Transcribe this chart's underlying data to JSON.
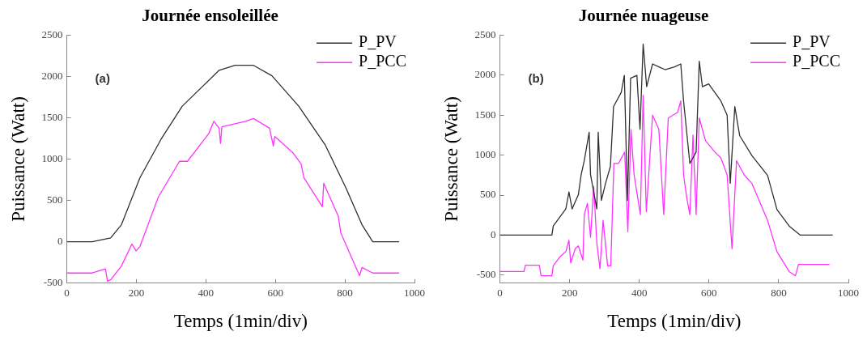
{
  "chart_data": [
    {
      "type": "line",
      "title": "Journée ensoleillée",
      "xlabel": "Temps (1min/div)",
      "ylabel": "Puissance (Watt)",
      "annotations": [
        "(a)"
      ],
      "legend": "top right",
      "grid": false,
      "marker": "none",
      "line_style": "solid",
      "xlim": [
        0,
        1000
      ],
      "xticks": [
        0,
        200,
        400,
        600,
        800,
        1000
      ],
      "ylim": [
        -500,
        2500
      ],
      "yticks": [
        -500,
        0,
        500,
        1000,
        1500,
        2000,
        2500
      ],
      "series": [
        {
          "name": "P_PV",
          "color": "#303030",
          "x": [
            0,
            73,
            126,
            157,
            210,
            271,
            332,
            438,
            484,
            537,
            590,
            667,
            743,
            804,
            849,
            880,
            956
          ],
          "values": [
            0,
            0,
            47,
            207,
            773,
            1240,
            1640,
            2073,
            2133,
            2133,
            2007,
            1640,
            1173,
            640,
            207,
            0,
            0
          ]
        },
        {
          "name": "P_PCC",
          "color": "#ff33ff",
          "x": [
            0,
            73,
            111,
            117,
            126,
            157,
            187,
            199,
            210,
            263,
            324,
            347,
            408,
            423,
            438,
            442,
            446,
            514,
            537,
            583,
            594,
            598,
            651,
            674,
            682,
            735,
            739,
            781,
            788,
            842,
            849,
            880,
            956
          ],
          "values": [
            -377,
            -377,
            -327,
            -477,
            -460,
            -293,
            -27,
            -110,
            -60,
            540,
            973,
            973,
            1307,
            1457,
            1373,
            1190,
            1390,
            1457,
            1490,
            1373,
            1157,
            1273,
            1073,
            940,
            773,
            423,
            707,
            307,
            107,
            -410,
            -310,
            -377,
            -377
          ]
        }
      ]
    },
    {
      "type": "line",
      "title": "Journée nuageuse",
      "xlabel": "Temps (1min/div)",
      "ylabel": "Puissance (Watt)",
      "annotations": [
        "(b)"
      ],
      "legend": "top right",
      "grid": false,
      "marker": "none",
      "line_style": "solid",
      "xlim": [
        0,
        1000
      ],
      "xticks": [
        0,
        200,
        400,
        600,
        800,
        1000
      ],
      "ylim": [
        -600,
        2500
      ],
      "yticks": [
        -500,
        0,
        500,
        1000,
        1500,
        2000,
        2500
      ],
      "series": [
        {
          "name": "P_PV",
          "color": "#303030",
          "x": [
            0,
            149,
            153,
            189,
            198,
            207,
            225,
            233,
            242,
            256,
            260,
            278,
            282,
            291,
            303,
            317,
            326,
            348,
            357,
            366,
            375,
            393,
            402,
            411,
            421,
            438,
            456,
            474,
            501,
            519,
            527,
            545,
            563,
            572,
            581,
            599,
            634,
            652,
            661,
            674,
            688,
            723,
            768,
            795,
            830,
            862,
            955
          ],
          "values": [
            0,
            0,
            114,
            327,
            540,
            327,
            504,
            753,
            930,
            1285,
            753,
            327,
            1285,
            433,
            646,
            859,
            1605,
            1783,
            1996,
            433,
            1960,
            1996,
            1321,
            2386,
            1854,
            2138,
            2102,
            2067,
            2102,
            2138,
            1676,
            895,
            1037,
            2173,
            1854,
            1889,
            1676,
            1499,
            647,
            1605,
            1243,
            994,
            746,
            320,
            114,
            0,
            0
          ]
        },
        {
          "name": "P_PCC",
          "color": "#ff33ff",
          "x": [
            0,
            69,
            73,
            113,
            118,
            149,
            153,
            171,
            189,
            198,
            203,
            216,
            225,
            238,
            242,
            251,
            260,
            269,
            278,
            287,
            296,
            309,
            318,
            327,
            340,
            358,
            367,
            376,
            385,
            403,
            411,
            420,
            438,
            456,
            470,
            483,
            510,
            519,
            527,
            536,
            545,
            554,
            563,
            572,
            590,
            617,
            634,
            652,
            666,
            679,
            701,
            723,
            768,
            795,
            830,
            848,
            857,
            946
          ],
          "values": [
            -455,
            -455,
            -376,
            -376,
            -508,
            -508,
            -384,
            -277,
            -206,
            -64,
            -348,
            -170,
            -135,
            -312,
            256,
            398,
            -28,
            611,
            -99,
            -419,
            185,
            -384,
            -384,
            895,
            895,
            1037,
            43,
            1321,
            753,
            256,
            1747,
            291,
            1499,
            1321,
            256,
            1463,
            1534,
            1676,
            753,
            469,
            256,
            1250,
            256,
            1463,
            1179,
            1037,
            966,
            753,
            -170,
            930,
            753,
            646,
            185,
            -206,
            -455,
            -508,
            -366,
            -366
          ]
        }
      ]
    }
  ]
}
